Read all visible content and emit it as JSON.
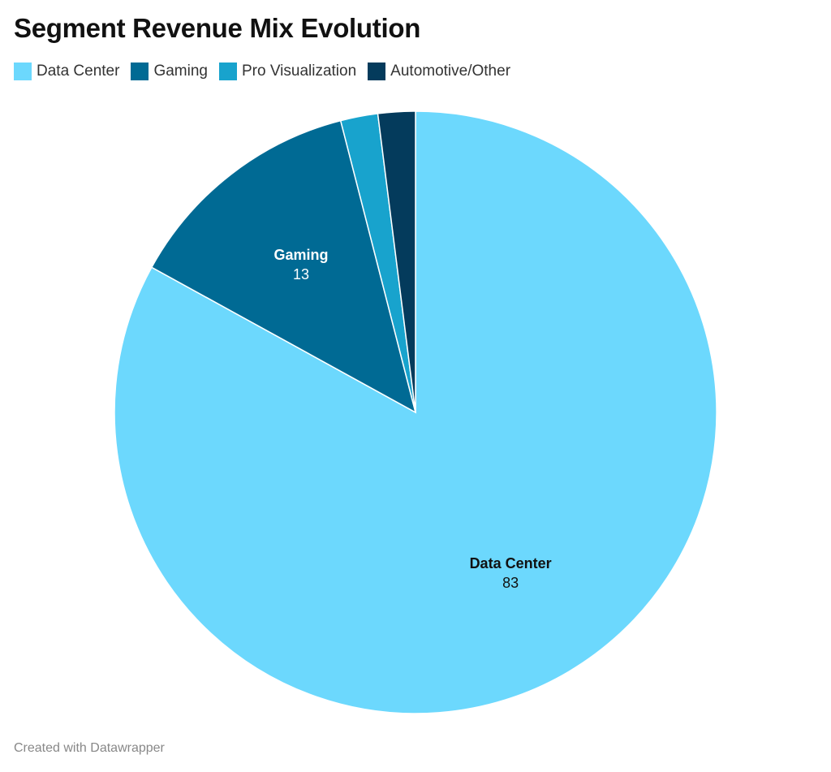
{
  "chart_data": {
    "type": "pie",
    "title": "Segment Revenue Mix Evolution",
    "legend_position": "top-left",
    "slices": [
      {
        "label": "Data Center",
        "value": 83,
        "color": "#6cd8fd",
        "show_label": true,
        "label_color": "#111111"
      },
      {
        "label": "Gaming",
        "value": 13,
        "color": "#006a94",
        "show_label": true,
        "label_color": "#ffffff"
      },
      {
        "label": "Pro Visualization",
        "value": 2,
        "color": "#18a3cd",
        "show_label": false
      },
      {
        "label": "Automotive/Other",
        "value": 2,
        "color": "#043b5c",
        "show_label": false
      }
    ]
  },
  "footer": "Created with Datawrapper"
}
